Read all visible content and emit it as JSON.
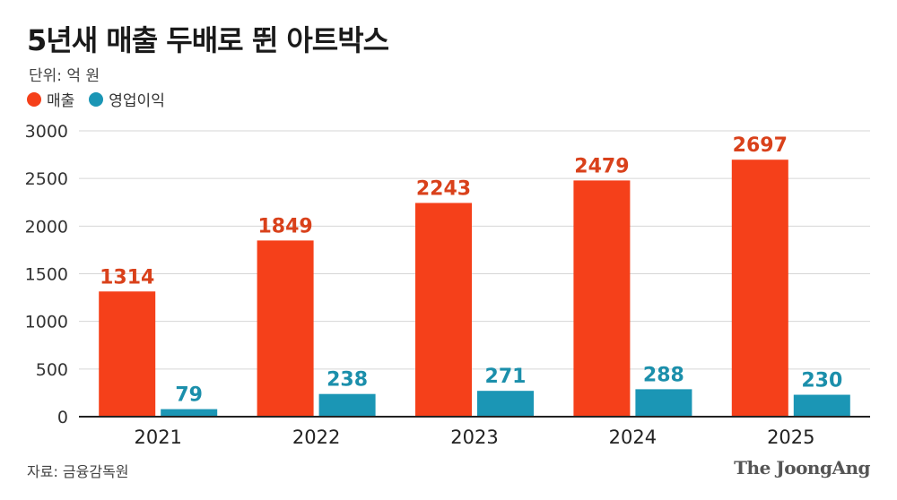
{
  "header": {
    "title": "5년새 매출 두배로 뛴 아트박스",
    "unit": "단위: 억 원"
  },
  "colors": {
    "sales": "#f5401a",
    "operating_profit": "#1b96b5",
    "sales_label": "#d9411b",
    "profit_label": "#1b8fab",
    "grid": "#d6d6d6",
    "axis": "#222222"
  },
  "chart_data": {
    "type": "bar",
    "title": "5년새 매출 두배로 뛴 아트박스",
    "unit_label": "단위: 억 원",
    "categories": [
      "2021",
      "2022",
      "2023",
      "2024",
      "2025"
    ],
    "series": [
      {
        "name": "매출",
        "values": [
          1314,
          1849,
          2243,
          2479,
          2697
        ]
      },
      {
        "name": "영업이익",
        "values": [
          79,
          238,
          271,
          288,
          230
        ]
      }
    ],
    "yticks": [
      "0",
      "500",
      "1000",
      "1500",
      "2000",
      "2500",
      "3000"
    ],
    "ylim": [
      0,
      3000
    ],
    "xlabel": "",
    "ylabel": "",
    "grid": true,
    "legend_position": "top-left"
  },
  "footer": {
    "source": "자료: 금융감독원",
    "brand": "The JoongAng"
  }
}
